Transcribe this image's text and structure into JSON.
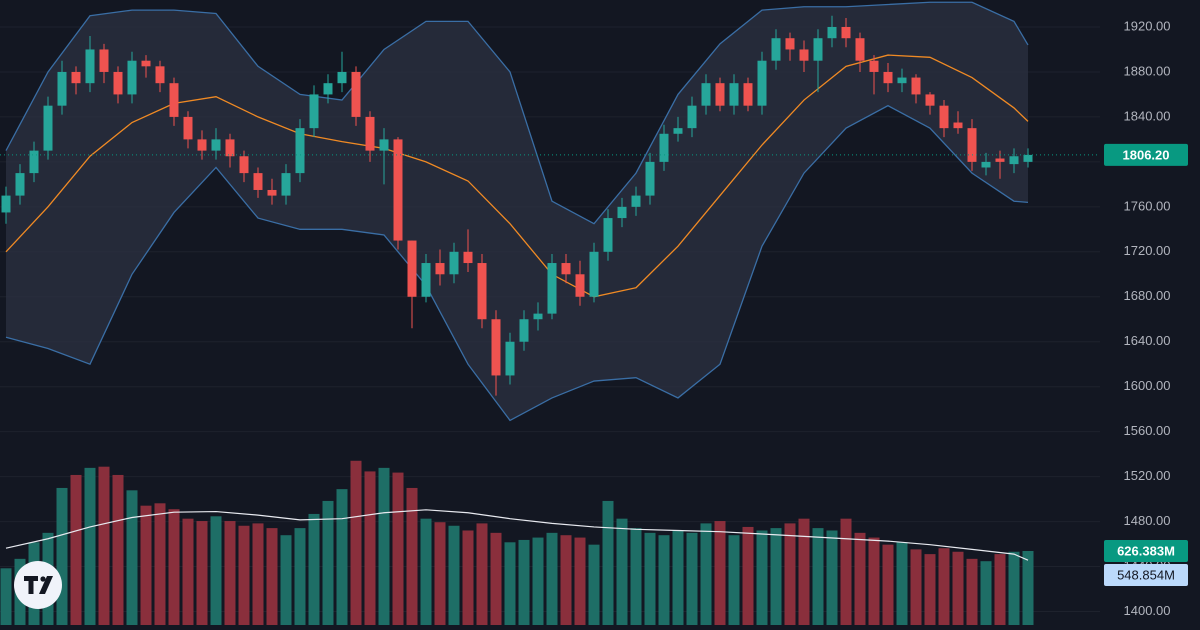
{
  "chart_data": {
    "type": "candlestick",
    "up_color": "#26a69a",
    "down_color": "#ef5350",
    "open": [
      1755,
      1770,
      1790,
      1810,
      1850,
      1880,
      1870,
      1900,
      1880,
      1860,
      1890,
      1885,
      1870,
      1840,
      1820,
      1810,
      1820,
      1805,
      1790,
      1775,
      1770,
      1790,
      1830,
      1860,
      1870,
      1880,
      1840,
      1810,
      1820,
      1730,
      1680,
      1710,
      1700,
      1720,
      1710,
      1660,
      1610,
      1640,
      1660,
      1665,
      1710,
      1700,
      1680,
      1720,
      1750,
      1760,
      1770,
      1800,
      1825,
      1830,
      1850,
      1870,
      1850,
      1870,
      1850,
      1890,
      1910,
      1900,
      1890,
      1910,
      1920,
      1910,
      1890,
      1880,
      1870,
      1875,
      1860,
      1850,
      1835,
      1830,
      1795,
      1803,
      1798,
      1800
    ],
    "high": [
      1778,
      1798,
      1818,
      1858,
      1890,
      1885,
      1912,
      1905,
      1885,
      1898,
      1895,
      1890,
      1875,
      1845,
      1828,
      1830,
      1825,
      1810,
      1795,
      1785,
      1798,
      1838,
      1868,
      1878,
      1898,
      1885,
      1845,
      1830,
      1822,
      1730,
      1718,
      1722,
      1728,
      1740,
      1718,
      1668,
      1648,
      1668,
      1675,
      1718,
      1718,
      1712,
      1728,
      1758,
      1768,
      1778,
      1808,
      1833,
      1840,
      1858,
      1878,
      1875,
      1878,
      1875,
      1898,
      1918,
      1915,
      1908,
      1918,
      1930,
      1928,
      1915,
      1895,
      1888,
      1883,
      1878,
      1862,
      1855,
      1845,
      1838,
      1808,
      1810,
      1812,
      1812
    ],
    "low": [
      1745,
      1762,
      1782,
      1802,
      1842,
      1860,
      1862,
      1870,
      1852,
      1852,
      1875,
      1862,
      1832,
      1812,
      1802,
      1802,
      1795,
      1782,
      1768,
      1762,
      1762,
      1782,
      1822,
      1852,
      1862,
      1832,
      1800,
      1780,
      1722,
      1652,
      1675,
      1690,
      1692,
      1702,
      1652,
      1592,
      1602,
      1632,
      1650,
      1660,
      1692,
      1672,
      1675,
      1712,
      1742,
      1752,
      1762,
      1792,
      1818,
      1822,
      1842,
      1845,
      1842,
      1845,
      1842,
      1882,
      1890,
      1880,
      1862,
      1902,
      1902,
      1880,
      1860,
      1862,
      1862,
      1852,
      1842,
      1822,
      1825,
      1792,
      1788,
      1785,
      1790,
      1795
    ],
    "close": [
      1770,
      1790,
      1810,
      1850,
      1880,
      1870,
      1900,
      1880,
      1860,
      1890,
      1885,
      1870,
      1840,
      1820,
      1810,
      1820,
      1805,
      1790,
      1775,
      1770,
      1790,
      1830,
      1860,
      1870,
      1880,
      1840,
      1810,
      1820,
      1730,
      1680,
      1710,
      1700,
      1720,
      1710,
      1660,
      1610,
      1640,
      1660,
      1665,
      1710,
      1700,
      1680,
      1720,
      1750,
      1760,
      1770,
      1800,
      1825,
      1830,
      1850,
      1870,
      1850,
      1870,
      1850,
      1890,
      1910,
      1900,
      1890,
      1910,
      1920,
      1910,
      1890,
      1880,
      1870,
      1875,
      1860,
      1850,
      1830,
      1830,
      1800,
      1800,
      1800,
      1805,
      1806.2
    ],
    "last_price": 1806.2,
    "last_price_label": "1806.20",
    "ylim": [
      1388,
      1944
    ],
    "yticks": [
      {
        "value": 1400,
        "label": "1400.00"
      },
      {
        "value": 1440,
        "label": "1440.00"
      },
      {
        "value": 1480,
        "label": "1480.00"
      },
      {
        "value": 1520,
        "label": "1520.00"
      },
      {
        "value": 1560,
        "label": "1560.00"
      },
      {
        "value": 1600,
        "label": "1600.00"
      },
      {
        "value": 1640,
        "label": "1640.00"
      },
      {
        "value": 1680,
        "label": "1680.00"
      },
      {
        "value": 1720,
        "label": "1720.00"
      },
      {
        "value": 1760,
        "label": "1760.00"
      },
      {
        "value": 1800,
        "label": "1800.00"
      },
      {
        "value": 1840,
        "label": "1840.00"
      },
      {
        "value": 1880,
        "label": "1880.00"
      },
      {
        "value": 1920,
        "label": "1920.00"
      }
    ],
    "grid": true,
    "bands": {
      "x": [
        0,
        3,
        6,
        9,
        12,
        15,
        18,
        21,
        24,
        27,
        30,
        33,
        36,
        39,
        42,
        45,
        48,
        51,
        54,
        57,
        60,
        63,
        66,
        69,
        72,
        73
      ],
      "upper": [
        1810,
        1880,
        1930,
        1935,
        1935,
        1932,
        1885,
        1860,
        1855,
        1900,
        1925,
        1925,
        1880,
        1765,
        1745,
        1790,
        1860,
        1905,
        1935,
        1938,
        1938,
        1940,
        1942,
        1942,
        1925,
        1904
      ],
      "middle": [
        1720,
        1760,
        1805,
        1835,
        1852,
        1858,
        1840,
        1825,
        1818,
        1812,
        1800,
        1783,
        1745,
        1700,
        1680,
        1688,
        1725,
        1770,
        1815,
        1855,
        1885,
        1895,
        1893,
        1875,
        1848,
        1836
      ],
      "lower": [
        1644,
        1634,
        1620,
        1700,
        1755,
        1795,
        1750,
        1740,
        1740,
        1735,
        1690,
        1620,
        1570,
        1590,
        1605,
        1608,
        1590,
        1620,
        1725,
        1790,
        1830,
        1850,
        1830,
        1790,
        1765,
        1764
      ],
      "band_color": "#3a6ea5",
      "fill_color": "#2a3040",
      "middle_color": "#f08a24"
    },
    "volume": {
      "values": [
        480,
        560,
        700,
        780,
        1160,
        1270,
        1330,
        1340,
        1270,
        1140,
        1010,
        1030,
        980,
        900,
        880,
        920,
        880,
        840,
        860,
        820,
        760,
        820,
        940,
        1050,
        1150,
        1390,
        1300,
        1330,
        1290,
        1160,
        900,
        870,
        840,
        800,
        860,
        780,
        700,
        720,
        740,
        780,
        760,
        740,
        680,
        1050,
        900,
        820,
        780,
        760,
        800,
        780,
        860,
        880,
        760,
        830,
        800,
        820,
        860,
        900,
        820,
        800,
        900,
        780,
        740,
        680,
        700,
        640,
        600,
        650,
        620,
        560,
        540,
        600,
        620,
        626.383
      ],
      "y2lim": [
        0,
        5290
      ],
      "up_color": "#1e6e66",
      "down_color": "#8a2f3c",
      "last_label": "626.383M"
    },
    "volume_ma": {
      "x": [
        0,
        3,
        6,
        9,
        12,
        15,
        18,
        21,
        24,
        27,
        30,
        33,
        36,
        39,
        42,
        45,
        48,
        51,
        54,
        57,
        60,
        63,
        66,
        69,
        72,
        73
      ],
      "values": [
        650,
        730,
        830,
        910,
        955,
        960,
        930,
        890,
        900,
        950,
        975,
        950,
        900,
        860,
        830,
        810,
        800,
        790,
        770,
        750,
        730,
        710,
        680,
        640,
        600,
        548.854
      ],
      "color": "#e8eaf0",
      "last_label": "548.854M"
    }
  }
}
